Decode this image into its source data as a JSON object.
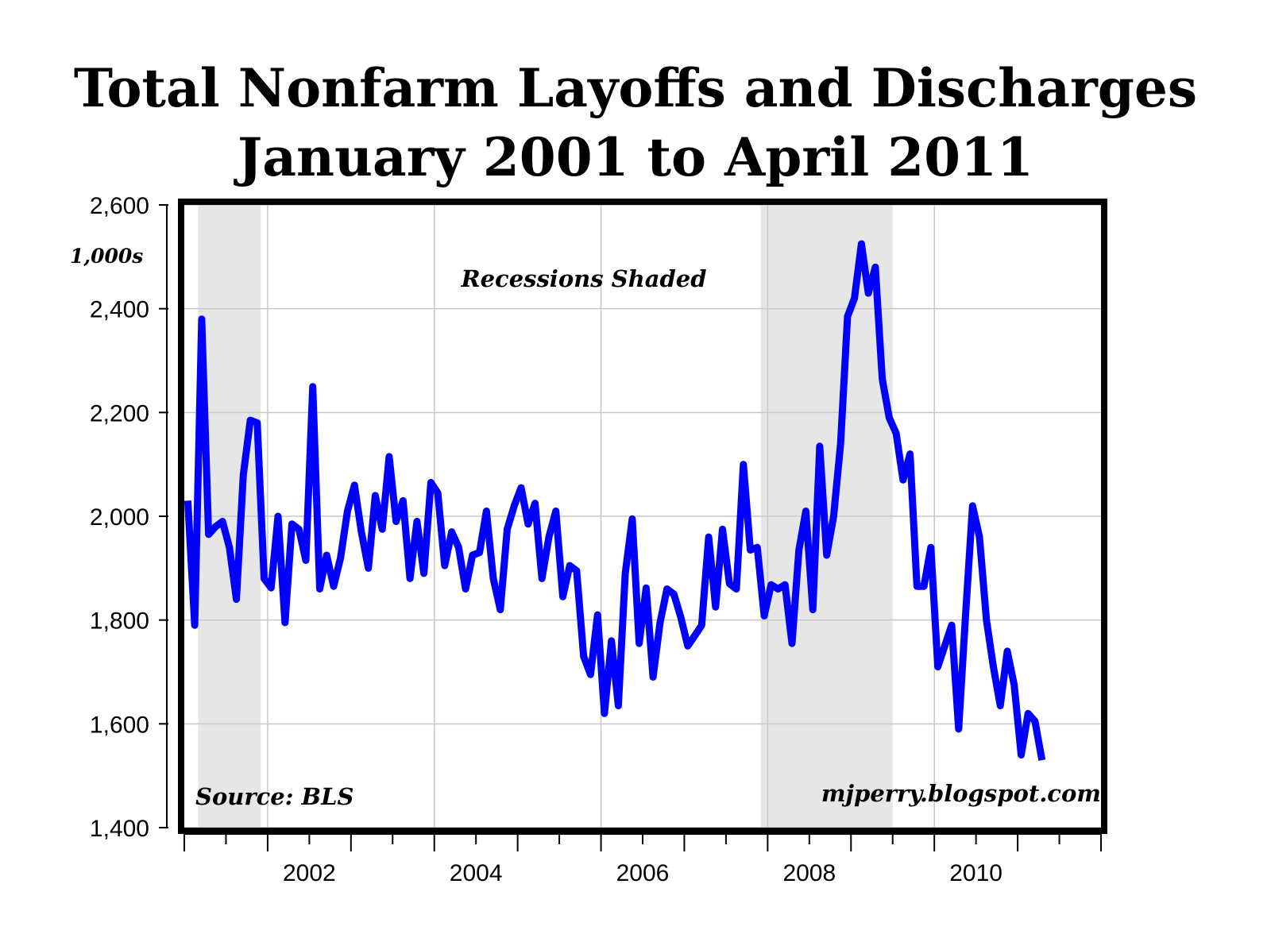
{
  "chart_data": {
    "type": "line",
    "title": "Total Nonfarm Layoffs and Discharges",
    "subtitle": "January 2001 to April 2011",
    "unit_label": "1,000s",
    "annotations": {
      "recessions": "Recessions Shaded",
      "source": "Source: BLS",
      "credit": "mjperry.blogspot.com"
    },
    "ylim": [
      1400,
      2600
    ],
    "yticks": [
      1400,
      1600,
      1800,
      2000,
      2200,
      2400,
      2600
    ],
    "ytick_labels": [
      "1,400",
      "1,600",
      "1,800",
      "2,000",
      "2,200",
      "2,400",
      "2,600"
    ],
    "xlim": [
      "2001-01",
      "2011-12"
    ],
    "xtick_labels": [
      {
        "year": 2002,
        "label": "2002"
      },
      {
        "year": 2004,
        "label": "2004"
      },
      {
        "year": 2006,
        "label": "2006"
      },
      {
        "year": 2008,
        "label": "2008"
      },
      {
        "year": 2010,
        "label": "2010"
      }
    ],
    "grid": true,
    "recession_periods": [
      {
        "start": "2001-03",
        "end": "2001-11"
      },
      {
        "start": "2007-12",
        "end": "2009-06"
      }
    ],
    "line_color": "#0000ff",
    "series": [
      {
        "x": [
          "2001-01",
          "2001-02",
          "2001-03",
          "2001-04",
          "2001-05",
          "2001-06",
          "2001-07",
          "2001-08",
          "2001-09",
          "2001-10",
          "2001-11",
          "2001-12",
          "2002-01",
          "2002-02",
          "2002-03",
          "2002-04",
          "2002-05",
          "2002-06",
          "2002-07",
          "2002-08",
          "2002-09",
          "2002-10",
          "2002-11",
          "2002-12",
          "2003-01",
          "2003-02",
          "2003-03",
          "2003-04",
          "2003-05",
          "2003-06",
          "2003-07",
          "2003-08",
          "2003-09",
          "2003-10",
          "2003-11",
          "2003-12",
          "2004-01",
          "2004-02",
          "2004-03",
          "2004-04",
          "2004-05",
          "2004-06",
          "2004-07",
          "2004-08",
          "2004-09",
          "2004-10",
          "2004-11",
          "2004-12",
          "2005-01",
          "2005-02",
          "2005-03",
          "2005-04",
          "2005-05",
          "2005-06",
          "2005-07",
          "2005-08",
          "2005-09",
          "2005-10",
          "2005-11",
          "2005-12",
          "2006-01",
          "2006-02",
          "2006-03",
          "2006-04",
          "2006-05",
          "2006-06",
          "2006-07",
          "2006-08",
          "2006-09",
          "2006-10",
          "2006-11",
          "2006-12",
          "2007-01",
          "2007-02",
          "2007-03",
          "2007-04",
          "2007-05",
          "2007-06",
          "2007-07",
          "2007-08",
          "2007-09",
          "2007-10",
          "2007-11",
          "2007-12",
          "2008-01",
          "2008-02",
          "2008-03",
          "2008-04",
          "2008-05",
          "2008-06",
          "2008-07",
          "2008-08",
          "2008-09",
          "2008-10",
          "2008-11",
          "2008-12",
          "2009-01",
          "2009-02",
          "2009-03",
          "2009-04",
          "2009-05",
          "2009-06",
          "2009-07",
          "2009-08",
          "2009-09",
          "2009-10",
          "2009-11",
          "2009-12",
          "2010-01",
          "2010-02",
          "2010-03",
          "2010-04",
          "2010-05",
          "2010-06",
          "2010-07",
          "2010-08",
          "2010-09",
          "2010-10",
          "2010-11",
          "2010-12",
          "2011-01",
          "2011-02",
          "2011-03",
          "2011-04"
        ],
        "values": [
          2030,
          1790,
          2380,
          1965,
          1980,
          1990,
          1940,
          1840,
          2080,
          2185,
          2180,
          1880,
          1862,
          2000,
          1795,
          1985,
          1975,
          1915,
          2250,
          1860,
          1925,
          1865,
          1920,
          2010,
          2060,
          1970,
          1900,
          2040,
          1975,
          2115,
          1990,
          2030,
          1880,
          1990,
          1890,
          2065,
          2045,
          1905,
          1970,
          1940,
          1860,
          1925,
          1930,
          2010,
          1880,
          1820,
          1975,
          2020,
          2055,
          1985,
          2025,
          1880,
          1960,
          2010,
          1845,
          1905,
          1895,
          1730,
          1695,
          1810,
          1620,
          1760,
          1635,
          1890,
          1995,
          1755,
          1862,
          1690,
          1795,
          1860,
          1850,
          1805,
          1750,
          1770,
          1790,
          1960,
          1825,
          1975,
          1870,
          1860,
          2100,
          1935,
          1940,
          1808,
          1868,
          1860,
          1868,
          1755,
          1935,
          2010,
          1820,
          2135,
          1925,
          2000,
          2140,
          2385,
          2420,
          2525,
          2430,
          2480,
          2265,
          2190,
          2160,
          2070,
          2120,
          1865,
          1865,
          1940,
          1710,
          1750,
          1790,
          1590,
          1810,
          2020,
          1960,
          1800,
          1710,
          1635,
          1740,
          1675,
          1540,
          1620,
          1605,
          1530
        ]
      }
    ]
  }
}
